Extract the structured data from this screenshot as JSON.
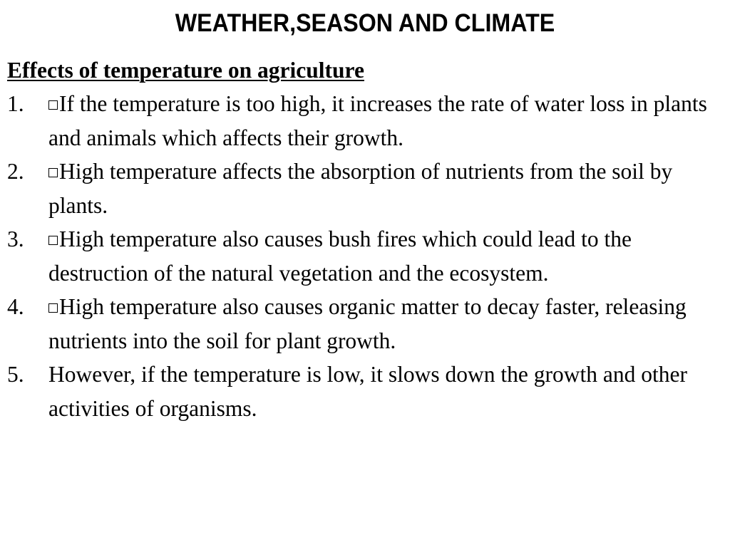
{
  "slide": {
    "title": "WEATHER,SEASON AND CLIMATE",
    "section_heading": "Effects of temperature on agriculture",
    "items": [
      {
        "number": "1.",
        "has_box": true,
        "text": "If the temperature is too high, it increases the rate of water loss in plants and animals which affects their growth."
      },
      {
        "number": "2.",
        "has_box": true,
        "text": "High temperature affects the absorption of nutrients from the soil by plants."
      },
      {
        "number": "3.",
        "has_box": true,
        "text": "High temperature also causes bush fires which could lead to the destruction of the natural vegetation and the ecosystem."
      },
      {
        "number": "4.",
        "has_box": true,
        "text": "High temperature also causes organic matter to decay faster, releasing nutrients into the soil for plant growth."
      },
      {
        "number": "5.",
        "has_box": false,
        "text": "However, if the temperature is low, it slows down the growth and other activities of organisms."
      }
    ]
  },
  "icons": {
    "bullet_box": "white-square-box-glyph"
  },
  "colors": {
    "background": "#ffffff",
    "text": "#000000"
  }
}
